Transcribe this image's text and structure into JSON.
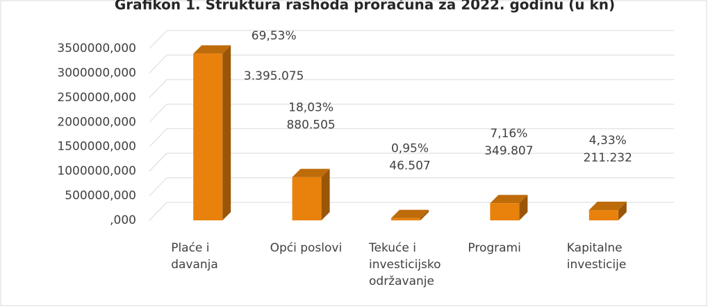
{
  "chart_data": {
    "type": "bar3d",
    "title": "Grafikon 1. Struktura rashoda proračuna za 2022. godinu (u kn)",
    "categories": [
      [
        "Plaće i",
        "davanja"
      ],
      [
        "Opći poslovi"
      ],
      [
        "Tekuće i",
        "investicijsko",
        "održavanje"
      ],
      [
        "Programi"
      ],
      [
        "Kapitalne",
        "investicije"
      ]
    ],
    "values": [
      3395075,
      880505,
      46507,
      349807,
      211232
    ],
    "value_labels": [
      "3.395.075",
      "880.505",
      "46.507",
      "349.807",
      "211.232"
    ],
    "percent_values": [
      69.53,
      18.03,
      0.95,
      7.16,
      4.33
    ],
    "percent_labels": [
      "69,53%",
      "18,03%",
      "0,95%",
      "7,16%",
      "4,33%"
    ],
    "color": "#e8820c",
    "ylim": [
      0,
      3500000
    ],
    "yticks": [
      {
        "value": 0,
        "label": ",000"
      },
      {
        "value": 500000,
        "label": "500000,000"
      },
      {
        "value": 1000000,
        "label": "1000000,000"
      },
      {
        "value": 1500000,
        "label": "1500000,000"
      },
      {
        "value": 2000000,
        "label": "2000000,000"
      },
      {
        "value": 2500000,
        "label": "2500000,000"
      },
      {
        "value": 3000000,
        "label": "3000000,000"
      },
      {
        "value": 3500000,
        "label": "3500000,000"
      }
    ],
    "grid": true
  }
}
